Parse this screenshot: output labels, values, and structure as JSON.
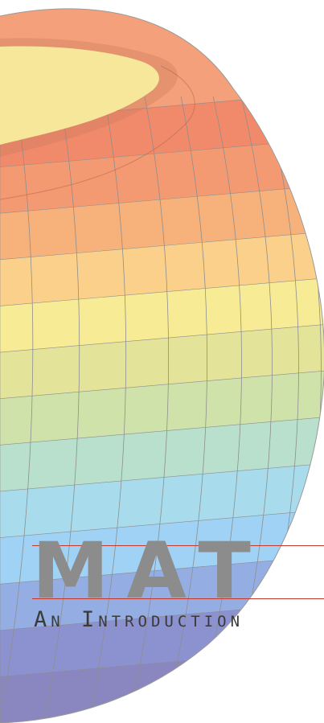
{
  "cover": {
    "title_word": "MAT",
    "subtitle": "An Introduction",
    "rule_color": "#c0392b",
    "title_color": "#8c8c8c"
  },
  "artwork": {
    "name": "rainbow-shaded-open-sphere",
    "band_colors": [
      "#f08a6a",
      "#f49a72",
      "#f7b27c",
      "#fad08a",
      "#f7eb95",
      "#e3e39a",
      "#cfe2aa",
      "#b9e0cc",
      "#a8dcec",
      "#9fd2f4",
      "#94aee4",
      "#8c92d0",
      "#8a86c0"
    ]
  }
}
